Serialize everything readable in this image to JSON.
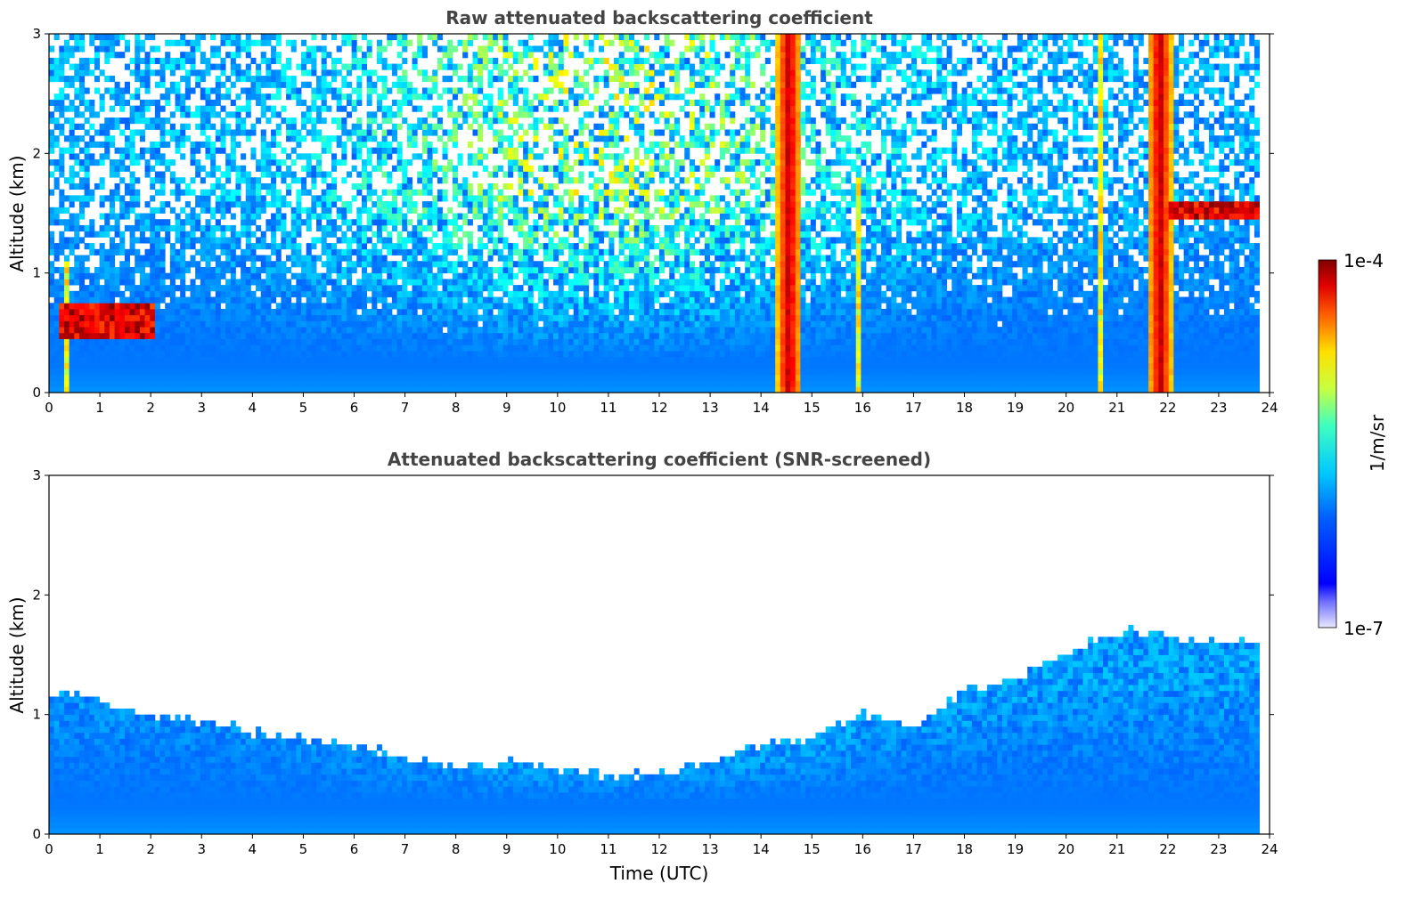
{
  "chart_data": [
    {
      "type": "heatmap",
      "title": "Raw attenuated backscattering coefficient",
      "xlabel": "",
      "ylabel": "Altitude (km)",
      "xlim": [
        0,
        24
      ],
      "ylim": [
        0,
        3
      ],
      "xticks": [
        "0",
        "1",
        "2",
        "3",
        "4",
        "5",
        "6",
        "7",
        "8",
        "9",
        "10",
        "11",
        "12",
        "13",
        "14",
        "15",
        "16",
        "17",
        "18",
        "19",
        "20",
        "21",
        "22",
        "23",
        "24"
      ],
      "yticks": [
        "0",
        "1",
        "2",
        "3"
      ],
      "variant": "raw",
      "features": [
        {
          "kind": "cloud_column",
          "x_range": [
            14.3,
            14.8
          ],
          "y_range": [
            0,
            3
          ]
        },
        {
          "kind": "cloud_column",
          "x_range": [
            21.6,
            22.1
          ],
          "y_range": [
            0,
            3
          ]
        },
        {
          "kind": "thin_column",
          "x": 15.9,
          "y_range": [
            0,
            1.8
          ]
        },
        {
          "kind": "thin_column",
          "x": 20.65,
          "y_range": [
            0,
            3
          ]
        },
        {
          "kind": "thin_column",
          "x": 0.35,
          "y_range": [
            0,
            1.1
          ]
        },
        {
          "kind": "cloud_layer",
          "x_range": [
            0.2,
            2.1
          ],
          "y_range": [
            0.45,
            0.75
          ]
        },
        {
          "kind": "cloud_layer",
          "x_range": [
            22.0,
            23.8
          ],
          "y_range": [
            1.45,
            1.6
          ]
        }
      ]
    },
    {
      "type": "heatmap",
      "title": "Attenuated backscattering coefficient (SNR-screened)",
      "xlabel": "Time (UTC)",
      "ylabel": "Altitude (km)",
      "xlim": [
        0,
        24
      ],
      "ylim": [
        0,
        3
      ],
      "xticks": [
        "0",
        "1",
        "2",
        "3",
        "4",
        "5",
        "6",
        "7",
        "8",
        "9",
        "10",
        "11",
        "12",
        "13",
        "14",
        "15",
        "16",
        "17",
        "18",
        "19",
        "20",
        "21",
        "22",
        "23",
        "24"
      ],
      "yticks": [
        "0",
        "1",
        "2",
        "3"
      ],
      "variant": "screened",
      "screen_height_km": {
        "x": [
          0,
          1,
          2,
          3,
          4,
          5,
          6,
          7,
          8,
          9,
          10,
          11,
          12,
          13,
          14,
          15,
          16,
          17,
          18,
          19,
          20,
          21,
          22,
          23,
          23.8
        ],
        "y": [
          1.2,
          1.1,
          1.0,
          0.95,
          0.85,
          0.8,
          0.75,
          0.65,
          0.55,
          0.6,
          0.55,
          0.5,
          0.5,
          0.6,
          0.75,
          0.8,
          1.0,
          0.9,
          1.2,
          1.3,
          1.5,
          1.7,
          1.65,
          1.6,
          1.6
        ]
      }
    }
  ],
  "colorbar": {
    "max_label": "1e-4",
    "min_label": "1e-7",
    "unit_label": "1/m/sr",
    "colormap": "jet"
  }
}
